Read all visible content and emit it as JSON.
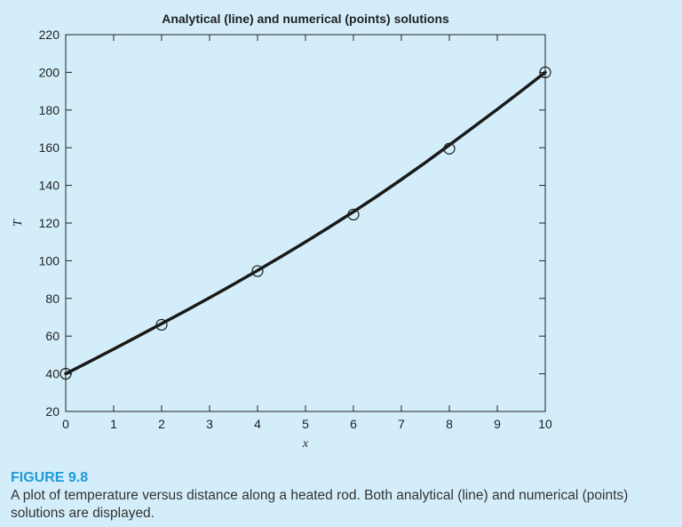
{
  "chart_data": {
    "type": "line",
    "title": "Analytical (line) and numerical (points) solutions",
    "xlabel": "x",
    "ylabel": "T",
    "xlim": [
      0,
      10
    ],
    "ylim": [
      20,
      220
    ],
    "x_ticks": [
      0,
      1,
      2,
      3,
      4,
      5,
      6,
      7,
      8,
      9,
      10
    ],
    "y_ticks": [
      20,
      40,
      60,
      80,
      100,
      120,
      140,
      160,
      180,
      200,
      220
    ],
    "grid": false,
    "series": [
      {
        "style": "line",
        "x": [
          0,
          0.5,
          1,
          1.5,
          2,
          2.5,
          3,
          3.5,
          4,
          4.5,
          5,
          5.5,
          6,
          6.5,
          7,
          7.5,
          8,
          8.5,
          9,
          9.5,
          10
        ],
        "y": [
          40,
          46.5,
          53.1,
          59.8,
          66.6,
          73.4,
          80.4,
          87.5,
          94.8,
          102.3,
          110.0,
          117.9,
          126.0,
          134.4,
          143.1,
          152.1,
          161.4,
          170.9,
          180.4,
          190.1,
          200
        ]
      },
      {
        "style": "points",
        "x": [
          0,
          2,
          4,
          6,
          8,
          10
        ],
        "y": [
          40,
          66,
          94.5,
          124.5,
          159.5,
          200
        ]
      }
    ]
  },
  "caption": {
    "label": "FIGURE 9.8",
    "text": "A plot of temperature versus distance along a heated rod. Both analytical (line) and numerical (points) solutions are displayed."
  }
}
